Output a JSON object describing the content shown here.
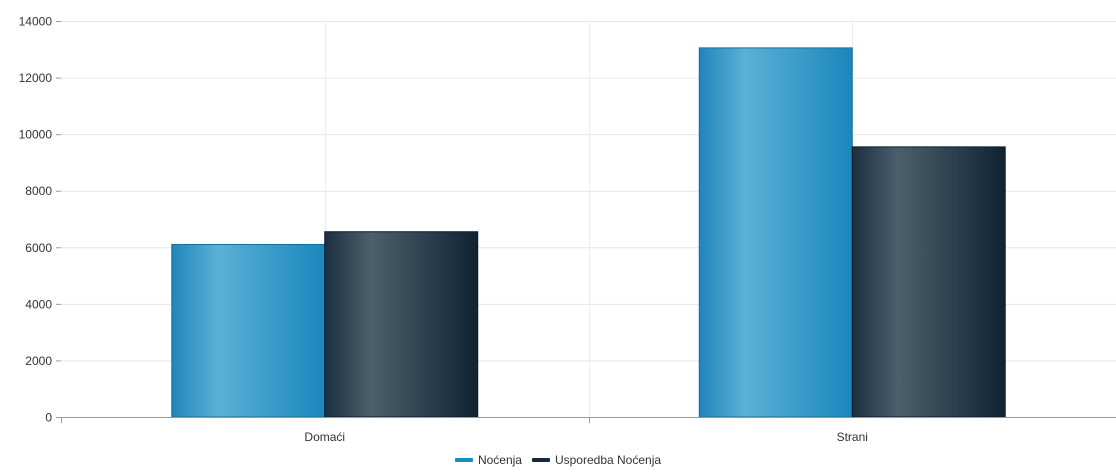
{
  "chart_data": {
    "type": "bar",
    "categories": [
      "Domaći",
      "Strani"
    ],
    "series": [
      {
        "name": "Noćenja",
        "values": [
          6100,
          13050
        ],
        "color": "#1b8bc0"
      },
      {
        "name": "Usporedba Noćenja",
        "values": [
          6550,
          9550
        ],
        "color": "#16283a"
      }
    ],
    "ylim": [
      0,
      14000
    ],
    "yticks": [
      0,
      2000,
      4000,
      6000,
      8000,
      10000,
      12000,
      14000
    ],
    "grid": true,
    "legend_position": "bottom-center"
  }
}
